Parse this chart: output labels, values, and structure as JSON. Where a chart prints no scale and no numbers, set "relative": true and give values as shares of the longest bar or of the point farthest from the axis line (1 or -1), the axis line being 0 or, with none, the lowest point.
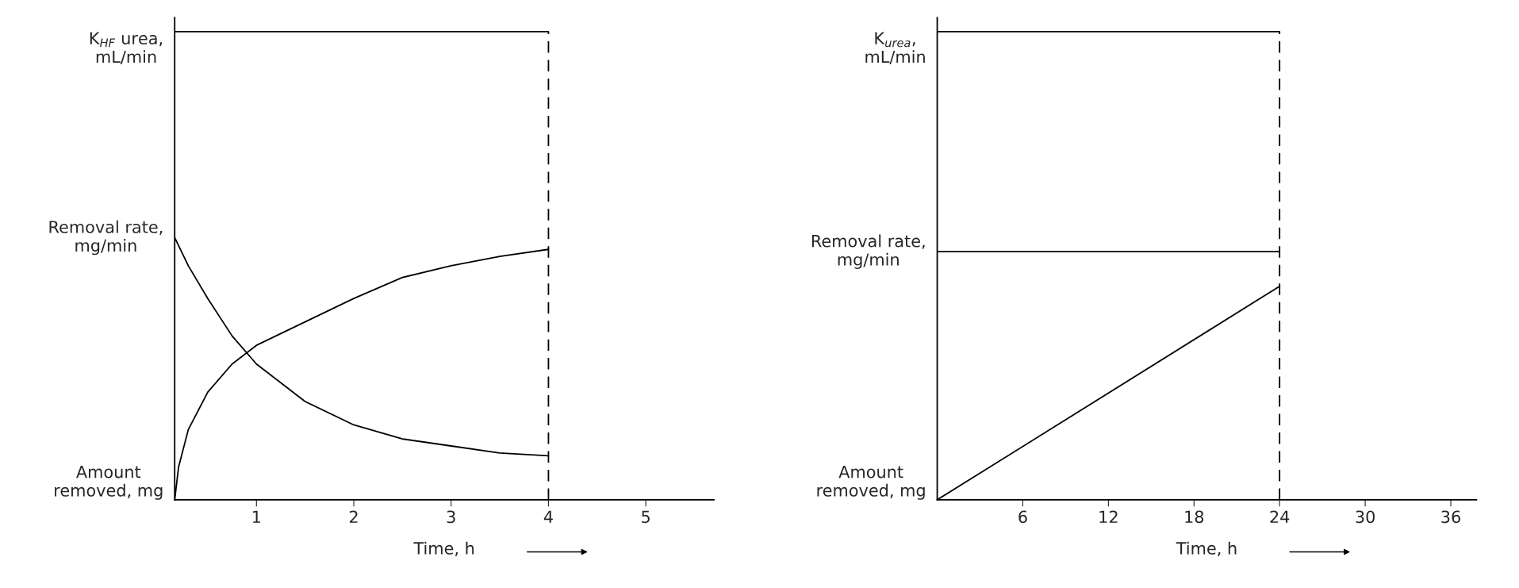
{
  "chart_data": [
    {
      "type": "line",
      "relative": true,
      "xlabel": "Time, h",
      "xlim": [
        0.16,
        5.7
      ],
      "xticks": [
        1,
        2,
        3,
        4,
        5
      ],
      "tick_labels": "x",
      "grid": false,
      "legend": false,
      "marker": "none",
      "line_style": "solid",
      "series": [
        {
          "color": "#000000",
          "x": [
            0.16,
            4
          ],
          "values": [
            1,
            1
          ]
        },
        {
          "color": "#000000",
          "x": [
            0.16,
            0.3,
            0.5,
            0.75,
            1,
            1.5,
            2,
            2.5,
            3,
            3.5,
            4
          ],
          "values": [
            0.56,
            0.5,
            0.43,
            0.35,
            0.29,
            0.21,
            0.16,
            0.13,
            0.115,
            0.1,
            0.094
          ]
        },
        {
          "color": "#000000",
          "x": [
            0.16,
            0.2,
            0.3,
            0.5,
            0.75,
            1,
            1.5,
            2,
            2.5,
            3,
            3.5,
            4
          ],
          "values": [
            0,
            0.07,
            0.15,
            0.23,
            0.29,
            0.33,
            0.38,
            0.43,
            0.475,
            0.5,
            0.52,
            0.535
          ]
        }
      ],
      "ref_lines": [
        {
          "axis": "x",
          "value": 4,
          "color": "#000000",
          "line_style": "dashed"
        }
      ],
      "annotations": [
        "K$_{HF}$ urea,\nmL/min",
        "Removal rate,\nmg/min",
        "Amount\nremoved, mg"
      ]
    },
    {
      "type": "line",
      "relative": true,
      "xlabel": "Time, h",
      "xlim": [
        0,
        37.8
      ],
      "xticks": [
        6,
        12,
        18,
        24,
        30,
        36
      ],
      "tick_labels": "x",
      "grid": false,
      "legend": false,
      "marker": "none",
      "line_style": "solid",
      "series": [
        {
          "color": "#000000",
          "x": [
            0,
            24
          ],
          "values": [
            1,
            1
          ]
        },
        {
          "color": "#000000",
          "x": [
            0,
            24
          ],
          "values": [
            0.53,
            0.53
          ]
        },
        {
          "color": "#000000",
          "x": [
            0,
            24
          ],
          "values": [
            0,
            0.456
          ]
        }
      ],
      "ref_lines": [
        {
          "axis": "x",
          "value": 24,
          "color": "#000000",
          "line_style": "dashed"
        }
      ],
      "annotations": [
        "K$_{urea}$,\nmL/min",
        "Removal rate,\nmg/min",
        "Amount\nremoved, mg"
      ]
    }
  ]
}
